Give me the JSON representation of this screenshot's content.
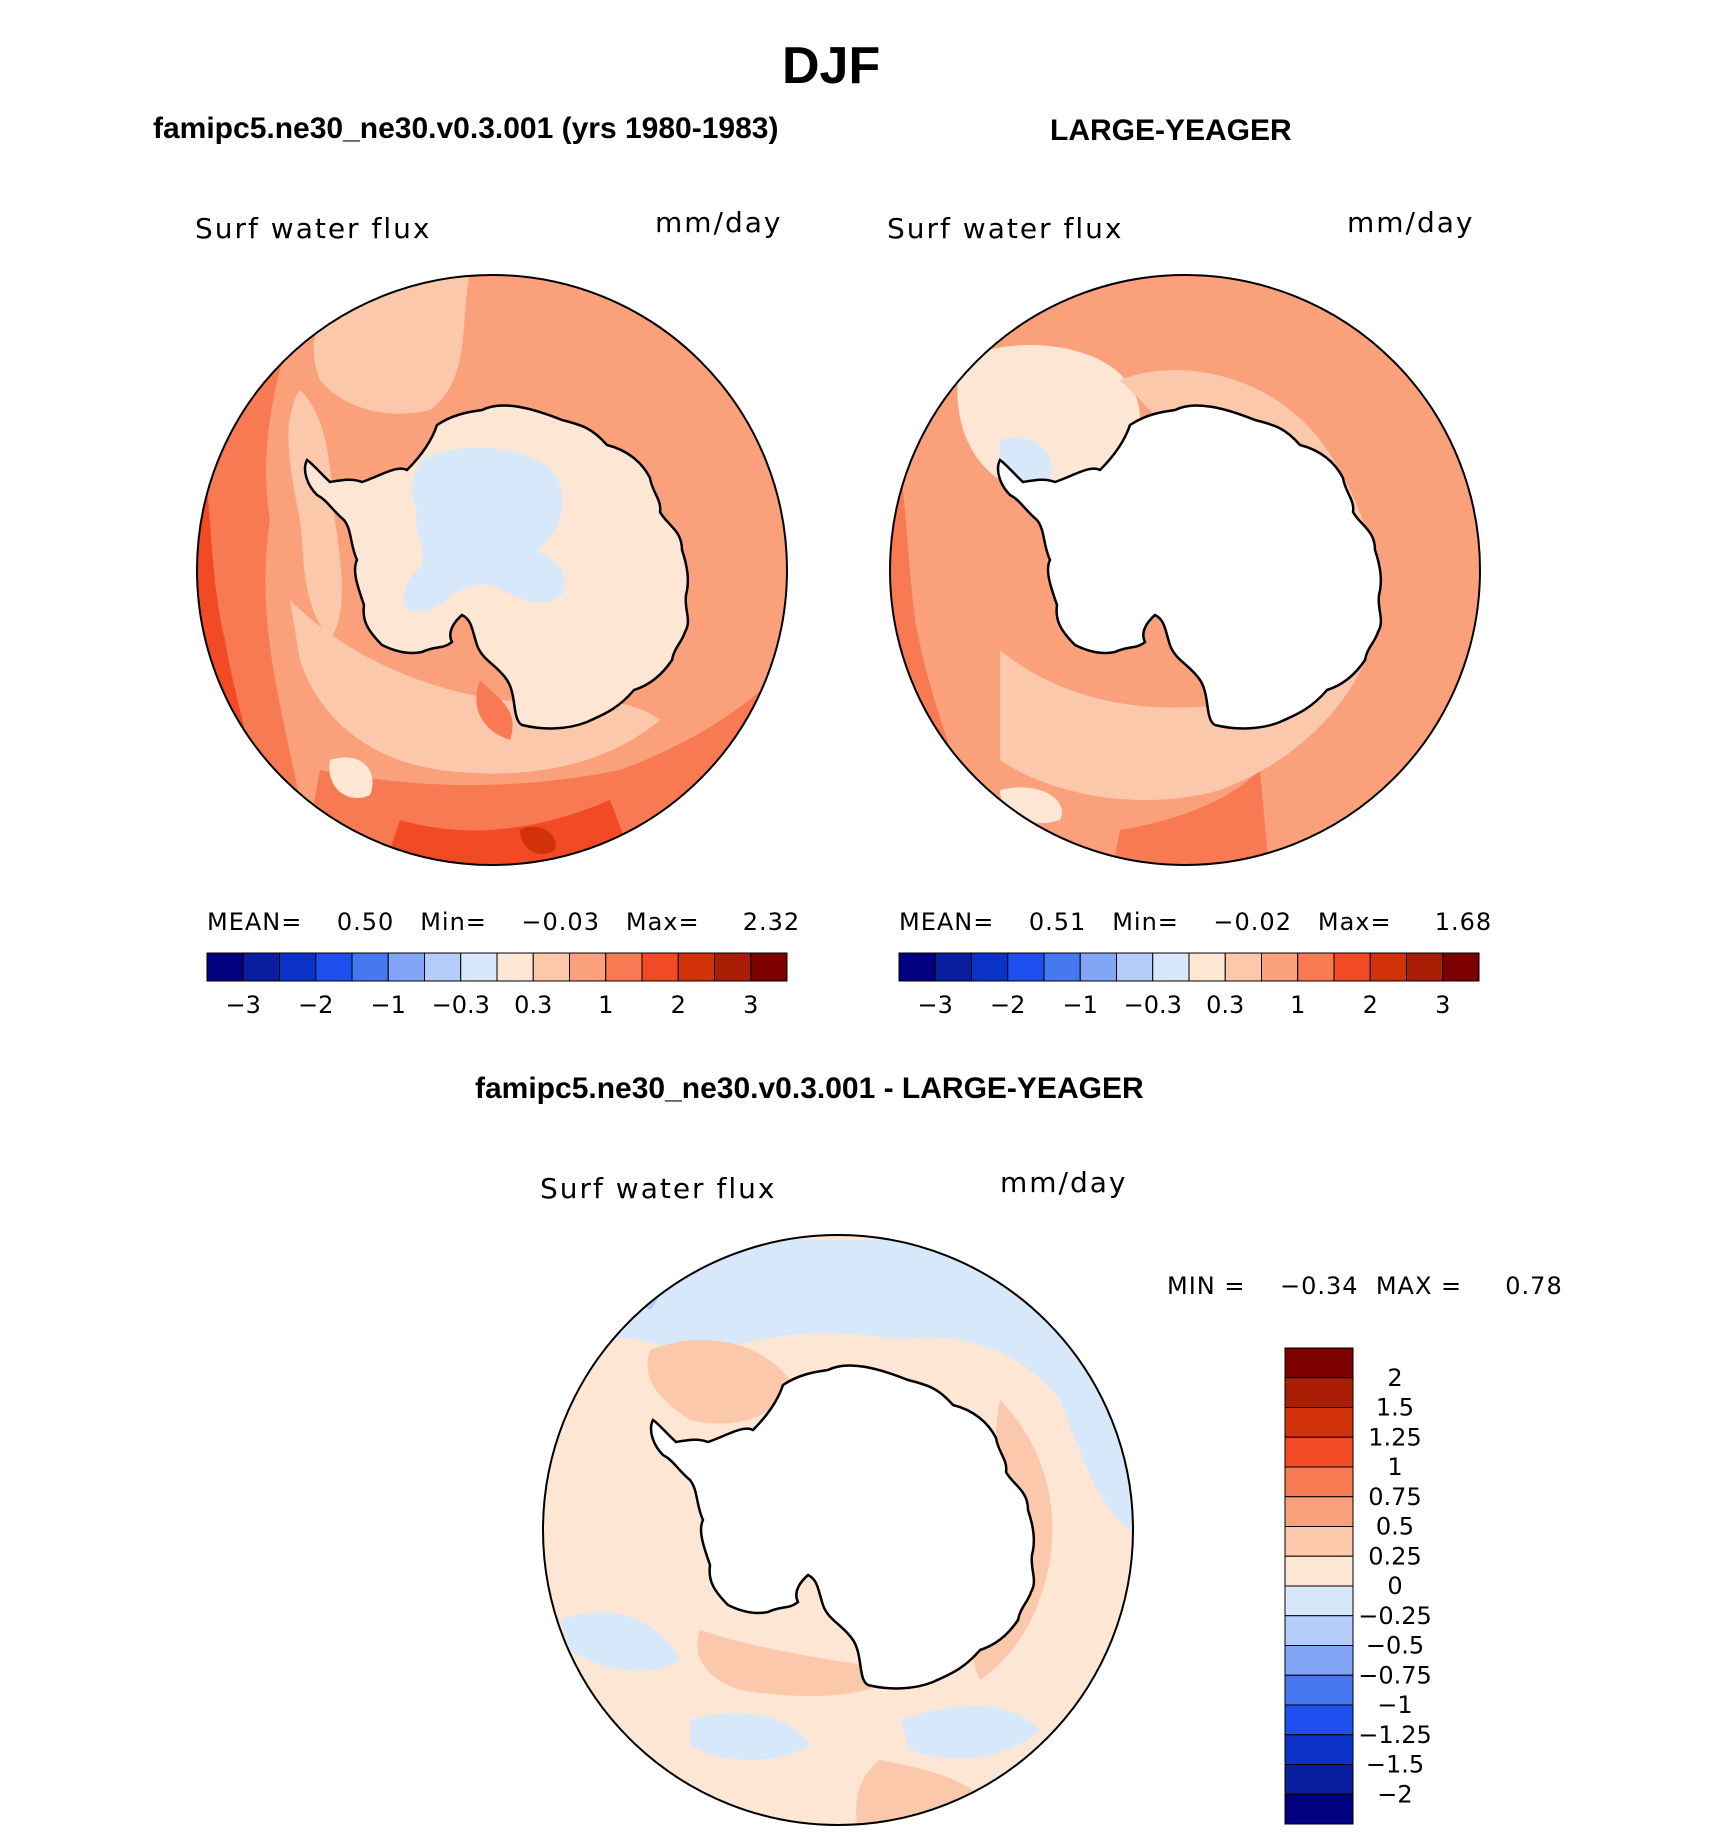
{
  "figure": {
    "title": "DJF"
  },
  "panels": {
    "model": {
      "title": "famipc5.ne30_ne30.v0.3.001 (yrs 1980-1983)",
      "variable": "Surf water flux",
      "units": "mm/day",
      "stats": {
        "mean_label": "MEAN=",
        "mean": "0.50",
        "min_label": "Min=",
        "min": "−0.03",
        "max_label": "Max=",
        "max": "2.32"
      }
    },
    "obs": {
      "title": "LARGE-YEAGER",
      "variable": "Surf water flux",
      "units": "mm/day",
      "stats": {
        "mean_label": "MEAN=",
        "mean": "0.51",
        "min_label": "Min=",
        "min": "−0.02",
        "max_label": "Max=",
        "max": "1.68"
      }
    },
    "diff": {
      "title": "famipc5.ne30_ne30.v0.3.001 - LARGE-YEAGER",
      "variable": "Surf water flux",
      "units": "mm/day",
      "stats": {
        "min_label": "MIN =",
        "min": "−0.34",
        "max_label": "MAX =",
        "max": "0.78"
      }
    }
  },
  "colorbar_horizontal": {
    "colors": [
      "#000080",
      "#0a1ea0",
      "#0a32c8",
      "#1e50f0",
      "#4678f0",
      "#82a5f5",
      "#b4cdfa",
      "#d7e8fa",
      "#fde6d4",
      "#fcc8ab",
      "#faa07a",
      "#f87a52",
      "#f24a24",
      "#d2320a",
      "#aa1e05",
      "#7d0000"
    ],
    "tick_labels": [
      "−3",
      "−2",
      "−1",
      "−0.3",
      "0.3",
      "1",
      "2",
      "3"
    ],
    "tick_boundaries": [
      1,
      3,
      5,
      7,
      9,
      11,
      13,
      15
    ]
  },
  "colorbar_vertical": {
    "colors_top_to_bottom": [
      "#7d0000",
      "#aa1e05",
      "#d2320a",
      "#f24a24",
      "#f87a52",
      "#faa07a",
      "#fcc8ab",
      "#fde6d4",
      "#d7e8fa",
      "#b4cdfa",
      "#82a5f5",
      "#4678f0",
      "#1e50f0",
      "#0a32c8",
      "#0a1ea0",
      "#000080"
    ],
    "tick_labels": [
      "2",
      "1.5",
      "1.25",
      "1",
      "0.75",
      "0.5",
      "0.25",
      "0",
      "−0.25",
      "−0.5",
      "−0.75",
      "−1",
      "−1.25",
      "−1.5",
      "−2"
    ]
  },
  "map_colors": {
    "ocean_dark": "#f24a24",
    "ocean_mid": "#f87a52",
    "ocean_light": "#faa07a",
    "ocean_pale": "#fcc8ab",
    "cream": "#fde6d4",
    "ice_blue": "#d7e8fa",
    "land_white": "#ffffff"
  }
}
